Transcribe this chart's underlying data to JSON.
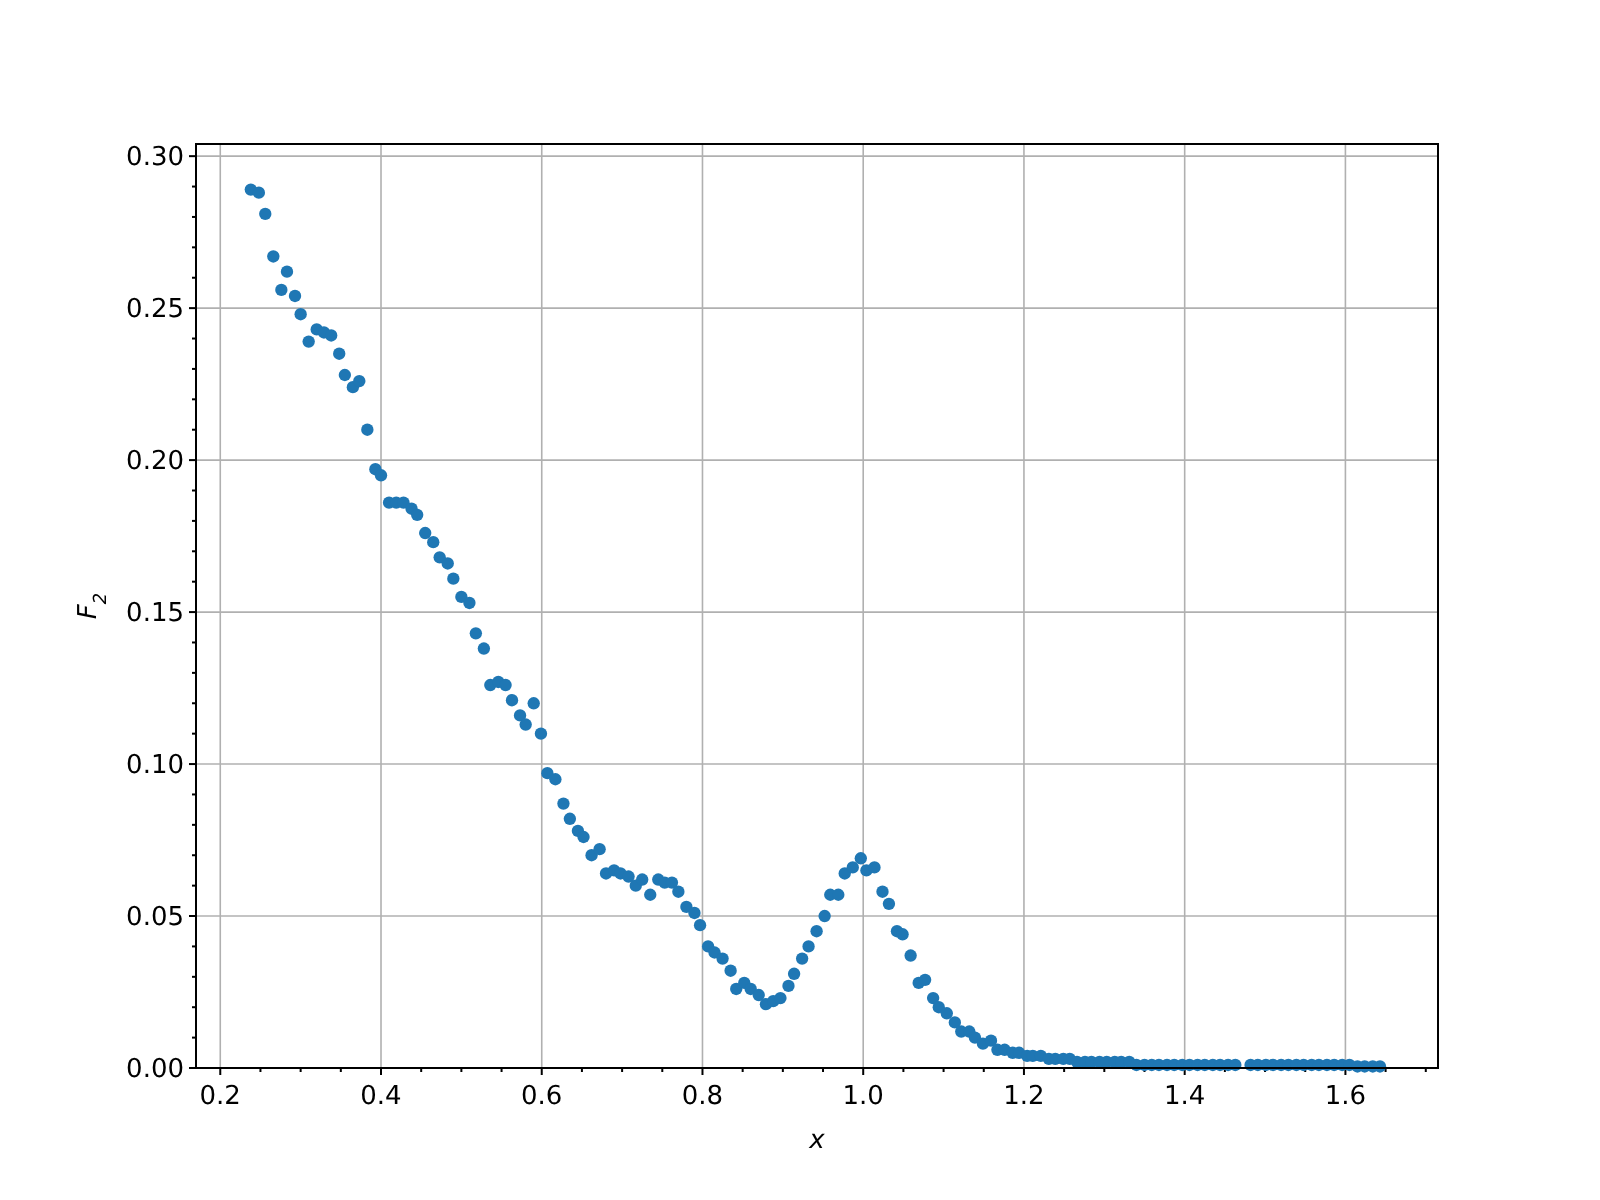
{
  "chart_data": {
    "type": "scatter",
    "xlabel": "x",
    "ylabel": "F$_{2}$",
    "color": "#1f77b4",
    "marker": "circle",
    "grid": true,
    "xlim": [
      0.1698,
      1.7152
    ],
    "ylim": [
      0,
      0.304
    ],
    "xticks": [
      {
        "value": 0.2,
        "label": "0.2"
      },
      {
        "value": 0.25,
        "label": null
      },
      {
        "value": 0.3,
        "label": null
      },
      {
        "value": 0.35,
        "label": null
      },
      {
        "value": 0.4,
        "label": "0.4"
      },
      {
        "value": 0.45,
        "label": null
      },
      {
        "value": 0.5,
        "label": null
      },
      {
        "value": 0.55,
        "label": null
      },
      {
        "value": 0.6,
        "label": "0.6"
      },
      {
        "value": 0.65,
        "label": null
      },
      {
        "value": 0.7,
        "label": null
      },
      {
        "value": 0.75,
        "label": null
      },
      {
        "value": 0.8,
        "label": "0.8"
      },
      {
        "value": 0.85,
        "label": null
      },
      {
        "value": 0.9,
        "label": null
      },
      {
        "value": 0.95,
        "label": null
      },
      {
        "value": 1.0,
        "label": "1.0"
      },
      {
        "value": 1.05,
        "label": null
      },
      {
        "value": 1.1,
        "label": null
      },
      {
        "value": 1.15,
        "label": null
      },
      {
        "value": 1.2,
        "label": "1.2"
      },
      {
        "value": 1.25,
        "label": null
      },
      {
        "value": 1.3,
        "label": null
      },
      {
        "value": 1.35,
        "label": null
      },
      {
        "value": 1.4,
        "label": "1.4"
      },
      {
        "value": 1.45,
        "label": null
      },
      {
        "value": 1.5,
        "label": null
      },
      {
        "value": 1.55,
        "label": null
      },
      {
        "value": 1.6,
        "label": "1.6"
      },
      {
        "value": 1.65,
        "label": null
      },
      {
        "value": 1.7,
        "label": null
      }
    ],
    "yticks": [
      {
        "value": 0,
        "label": "0.00"
      },
      {
        "value": 0.01,
        "label": null
      },
      {
        "value": 0.02,
        "label": null
      },
      {
        "value": 0.03,
        "label": null
      },
      {
        "value": 0.04,
        "label": null
      },
      {
        "value": 0.05,
        "label": "0.05"
      },
      {
        "value": 0.06,
        "label": null
      },
      {
        "value": 0.07,
        "label": null
      },
      {
        "value": 0.08,
        "label": null
      },
      {
        "value": 0.09,
        "label": null
      },
      {
        "value": 0.1,
        "label": "0.10"
      },
      {
        "value": 0.11,
        "label": null
      },
      {
        "value": 0.12,
        "label": null
      },
      {
        "value": 0.13,
        "label": null
      },
      {
        "value": 0.14,
        "label": null
      },
      {
        "value": 0.15,
        "label": "0.15"
      },
      {
        "value": 0.16,
        "label": null
      },
      {
        "value": 0.17,
        "label": null
      },
      {
        "value": 0.18,
        "label": null
      },
      {
        "value": 0.19,
        "label": null
      },
      {
        "value": 0.2,
        "label": "0.20"
      },
      {
        "value": 0.21,
        "label": null
      },
      {
        "value": 0.22,
        "label": null
      },
      {
        "value": 0.23,
        "label": null
      },
      {
        "value": 0.24,
        "label": null
      },
      {
        "value": 0.25,
        "label": "0.25"
      },
      {
        "value": 0.26,
        "label": null
      },
      {
        "value": 0.27,
        "label": null
      },
      {
        "value": 0.28,
        "label": null
      },
      {
        "value": 0.29,
        "label": null
      },
      {
        "value": 0.3,
        "label": "0.30"
      }
    ],
    "x": [
      0.238,
      0.248,
      0.256,
      0.266,
      0.276,
      0.283,
      0.293,
      0.3,
      0.31,
      0.32,
      0.329,
      0.338,
      0.348,
      0.355,
      0.365,
      0.373,
      0.383,
      0.393,
      0.4,
      0.41,
      0.419,
      0.428,
      0.438,
      0.445,
      0.455,
      0.465,
      0.473,
      0.483,
      0.49,
      0.5,
      0.51,
      0.518,
      0.528,
      0.536,
      0.546,
      0.555,
      0.563,
      0.573,
      0.58,
      0.59,
      0.599,
      0.607,
      0.617,
      0.627,
      0.635,
      0.645,
      0.652,
      0.662,
      0.672,
      0.68,
      0.69,
      0.698,
      0.708,
      0.717,
      0.725,
      0.735,
      0.745,
      0.753,
      0.762,
      0.77,
      0.78,
      0.79,
      0.797,
      0.807,
      0.815,
      0.825,
      0.835,
      0.842,
      0.852,
      0.86,
      0.87,
      0.879,
      0.888,
      0.897,
      0.907,
      0.914,
      0.924,
      0.932,
      0.942,
      0.952,
      0.959,
      0.969,
      0.977,
      0.987,
      0.997,
      1.004,
      1.014,
      1.024,
      1.032,
      1.042,
      1.049,
      1.059,
      1.069,
      1.077,
      1.087,
      1.094,
      1.104,
      1.114,
      1.122,
      1.132,
      1.139,
      1.149,
      1.159,
      1.167,
      1.176,
      1.186,
      1.194,
      1.204,
      1.211,
      1.221,
      1.231,
      1.239,
      1.249,
      1.257,
      1.266,
      1.276,
      1.284,
      1.294,
      1.303,
      1.313,
      1.321,
      1.331,
      1.34,
      1.35,
      1.359,
      1.368,
      1.378,
      1.387,
      1.397,
      1.406,
      1.416,
      1.425,
      1.435,
      1.444,
      1.454,
      1.463,
      1.482,
      1.491,
      1.501,
      1.51,
      1.52,
      1.529,
      1.539,
      1.548,
      1.558,
      1.567,
      1.577,
      1.586,
      1.596,
      1.605,
      1.615,
      1.624,
      1.634,
      1.643
    ],
    "values": [
      0.289,
      0.288,
      0.281,
      0.267,
      0.256,
      0.262,
      0.254,
      0.248,
      0.239,
      0.243,
      0.242,
      0.241,
      0.235,
      0.228,
      0.224,
      0.226,
      0.21,
      0.197,
      0.195,
      0.186,
      0.186,
      0.186,
      0.184,
      0.182,
      0.176,
      0.173,
      0.168,
      0.166,
      0.161,
      0.155,
      0.153,
      0.143,
      0.138,
      0.126,
      0.127,
      0.126,
      0.121,
      0.116,
      0.113,
      0.12,
      0.11,
      0.097,
      0.095,
      0.087,
      0.082,
      0.078,
      0.076,
      0.07,
      0.072,
      0.064,
      0.065,
      0.064,
      0.063,
      0.06,
      0.062,
      0.057,
      0.062,
      0.061,
      0.061,
      0.058,
      0.053,
      0.051,
      0.047,
      0.04,
      0.038,
      0.036,
      0.032,
      0.026,
      0.028,
      0.026,
      0.024,
      0.021,
      0.022,
      0.023,
      0.027,
      0.031,
      0.036,
      0.04,
      0.045,
      0.05,
      0.057,
      0.057,
      0.064,
      0.066,
      0.069,
      0.065,
      0.066,
      0.058,
      0.054,
      0.045,
      0.044,
      0.037,
      0.028,
      0.029,
      0.023,
      0.02,
      0.018,
      0.015,
      0.012,
      0.012,
      0.01,
      0.008,
      0.009,
      0.006,
      0.006,
      0.005,
      0.005,
      0.004,
      0.004,
      0.004,
      0.003,
      0.003,
      0.003,
      0.003,
      0.002,
      0.002,
      0.002,
      0.002,
      0.002,
      0.002,
      0.002,
      0.002,
      0.001,
      0.001,
      0.001,
      0.001,
      0.001,
      0.001,
      0.001,
      0.001,
      0.001,
      0.001,
      0.001,
      0.001,
      0.001,
      0.001,
      0.001,
      0.001,
      0.001,
      0.001,
      0.001,
      0.001,
      0.001,
      0.001,
      0.001,
      0.001,
      0.001,
      0.001,
      0.001,
      0.001,
      0.0005,
      0.0005,
      0.0005,
      0.0005
    ]
  }
}
